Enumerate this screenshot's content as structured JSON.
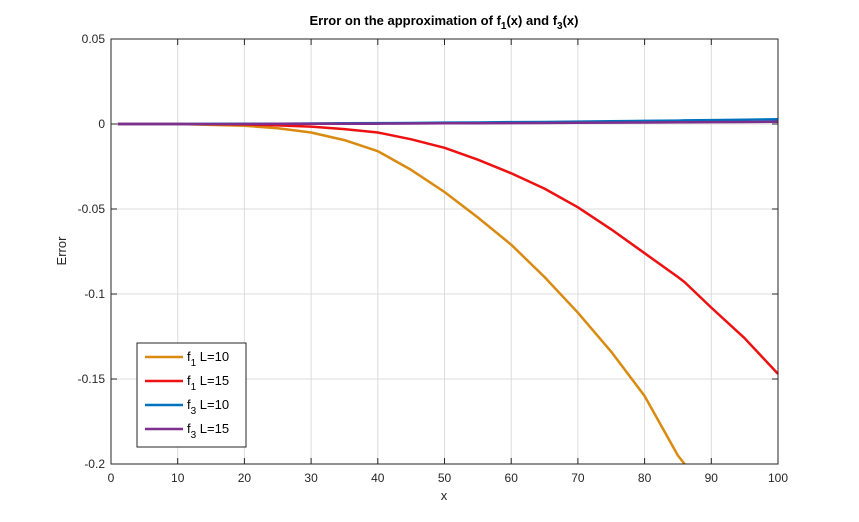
{
  "chart_data": {
    "type": "line",
    "title": "Error on the approximation of f1(x) and f3(x)",
    "title_parts": {
      "prefix": "Error on the approximation of f",
      "sub1": "1",
      "mid": "(x) and f",
      "sub2": "3",
      "suffix": "(x)"
    },
    "xlabel": "x",
    "ylabel": "Error",
    "xlim": [
      0,
      100
    ],
    "ylim": [
      -0.2,
      0.05
    ],
    "xticks": [
      0,
      10,
      20,
      30,
      40,
      50,
      60,
      70,
      80,
      90,
      100
    ],
    "yticks": [
      0.05,
      0,
      -0.05,
      -0.1,
      -0.15,
      -0.2
    ],
    "xtick_labels": [
      "0",
      "10",
      "20",
      "30",
      "40",
      "50",
      "60",
      "70",
      "80",
      "90",
      "100"
    ],
    "ytick_labels": [
      "0.05",
      "0",
      "-0.05",
      "-0.1",
      "-0.15",
      "-0.2"
    ],
    "grid": true,
    "legend_position": "lower-left",
    "x": [
      1,
      10,
      20,
      25,
      30,
      35,
      40,
      45,
      50,
      55,
      60,
      65,
      70,
      75,
      80,
      85,
      86,
      90,
      95,
      100
    ],
    "series": [
      {
        "name": "f1 L=10",
        "legend_base": "f",
        "legend_sub": "1",
        "legend_rest": " L=10",
        "color": "#D95319",
        "display_color": "#D98A0F",
        "values": [
          0,
          0,
          -0.001,
          -0.0025,
          -0.005,
          -0.0095,
          -0.016,
          -0.027,
          -0.04,
          -0.055,
          -0.071,
          -0.09,
          -0.111,
          -0.134,
          -0.16,
          -0.195,
          -0.201,
          null,
          null,
          null
        ]
      },
      {
        "name": "f1 L=15",
        "legend_base": "f",
        "legend_sub": "1",
        "legend_rest": " L=15",
        "color": "#EE1111",
        "values": [
          0,
          0,
          -0.0003,
          -0.0008,
          -0.0015,
          -0.003,
          -0.005,
          -0.009,
          -0.014,
          -0.021,
          -0.029,
          -0.038,
          -0.049,
          -0.062,
          -0.076,
          -0.09,
          -0.093,
          -0.108,
          -0.126,
          -0.147
        ]
      },
      {
        "name": "f3 L=10",
        "legend_base": "f",
        "legend_sub": "3",
        "legend_rest": " L=10",
        "color": "#0072BD",
        "values": [
          0,
          0,
          0.0001,
          0.0002,
          0.0003,
          0.0004,
          0.0005,
          0.0006,
          0.0008,
          0.0009,
          0.0011,
          0.0012,
          0.0014,
          0.0016,
          0.0018,
          0.002,
          0.0021,
          0.0023,
          0.0025,
          0.0028
        ]
      },
      {
        "name": "f3 L=15",
        "legend_base": "f",
        "legend_sub": "3",
        "legend_rest": " L=15",
        "color": "#7E2F8E",
        "values": [
          0,
          0,
          0,
          0.0001,
          0.0001,
          0.0002,
          0.0002,
          0.0003,
          0.0004,
          0.0004,
          0.0005,
          0.0006,
          0.0007,
          0.0008,
          0.0009,
          0.001,
          0.001,
          0.0011,
          0.0012,
          0.0013
        ]
      }
    ]
  }
}
